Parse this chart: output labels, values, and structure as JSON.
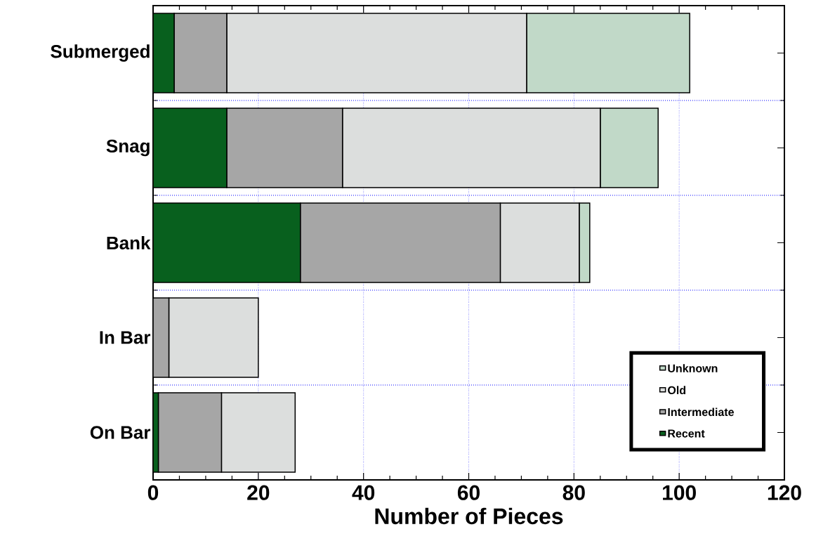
{
  "chart_data": {
    "type": "bar",
    "orientation": "horizontal",
    "stacked": true,
    "xlabel": "Number of Pieces",
    "categories": [
      "Submerged",
      "Snag",
      "Bank",
      "In Bar",
      "On Bar"
    ],
    "series": [
      {
        "name": "Recent",
        "color": "#08601e",
        "values": [
          4,
          14,
          28,
          0,
          1
        ]
      },
      {
        "name": "Intermediate",
        "color": "#a6a6a6",
        "values": [
          10,
          22,
          38,
          3,
          12
        ]
      },
      {
        "name": "Old",
        "color": "#dcdedd",
        "values": [
          57,
          49,
          15,
          17,
          14
        ]
      },
      {
        "name": "Unknown",
        "color": "#c1d9c8",
        "values": [
          31,
          11,
          2,
          0,
          0
        ]
      }
    ],
    "xlim": [
      0,
      120
    ],
    "xticks": [
      0,
      20,
      40,
      60,
      80,
      100,
      120
    ],
    "grid": true,
    "legend": "bottom right"
  }
}
